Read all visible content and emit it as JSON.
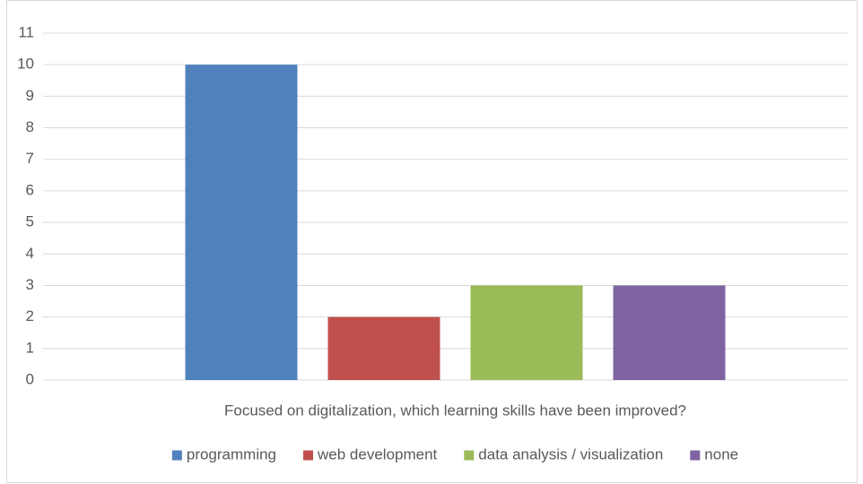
{
  "chart_data": {
    "type": "bar",
    "categories": [
      "Focused on digitalization, which learning skills have been improved?"
    ],
    "series": [
      {
        "name": "programming",
        "color": "#4f81bd",
        "values": [
          10
        ]
      },
      {
        "name": "web development",
        "color": "#c0504d",
        "values": [
          2
        ]
      },
      {
        "name": "data analysis / visualization",
        "color": "#9bbb59",
        "values": [
          3
        ]
      },
      {
        "name": "none",
        "color": "#8064a2",
        "values": [
          3
        ]
      }
    ],
    "ylim": [
      0,
      11
    ],
    "yticks": [
      0,
      1,
      2,
      3,
      4,
      5,
      6,
      7,
      8,
      9,
      10,
      11
    ],
    "grid": true,
    "legend": "bottom"
  }
}
